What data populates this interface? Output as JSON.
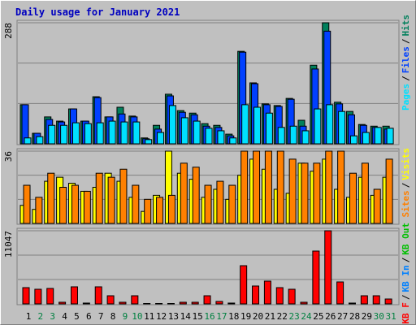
{
  "chart_data": {
    "type": "bar",
    "title": "Daily usage for January 2021",
    "categories": [
      "1",
      "2",
      "3",
      "4",
      "5",
      "6",
      "7",
      "8",
      "9",
      "10",
      "11",
      "12",
      "13",
      "14",
      "15",
      "16",
      "17",
      "18",
      "19",
      "20",
      "21",
      "22",
      "23",
      "24",
      "25",
      "26",
      "27",
      "28",
      "29",
      "30",
      "31"
    ],
    "category_colors": [
      "#000000",
      "#008040",
      "#008040",
      "#000000",
      "#000000",
      "#000000",
      "#000000",
      "#000000",
      "#008040",
      "#008040",
      "#000000",
      "#000000",
      "#000000",
      "#000000",
      "#000000",
      "#008040",
      "#008040",
      "#000000",
      "#000000",
      "#000000",
      "#000000",
      "#000000",
      "#008040",
      "#008040",
      "#000000",
      "#000000",
      "#000000",
      "#000000",
      "#000000",
      "#008040",
      "#008040"
    ],
    "separator": "/",
    "panels": [
      {
        "ylim": [
          0,
          288
        ],
        "yticks": [
          288
        ],
        "series": [
          {
            "name": "Hits",
            "color": "#00805C",
            "values": [
              93,
              25,
              64,
              54,
              83,
              54,
              112,
              64,
              87,
              66,
              14,
              44,
              118,
              79,
              73,
              48,
              44,
              23,
              220,
              145,
              95,
              91,
              108,
              56,
              187,
              288,
              99,
              77,
              46,
              42,
              42
            ]
          },
          {
            "name": "Files",
            "color": "#0040FF",
            "values": [
              93,
              25,
              58,
              52,
              83,
              54,
              110,
              64,
              71,
              64,
              12,
              35,
              114,
              75,
              69,
              42,
              39,
              19,
              218,
              143,
              93,
              89,
              106,
              42,
              178,
              268,
              95,
              69,
              44,
              39,
              35
            ]
          },
          {
            "name": "Pages",
            "color": "#00E0FF",
            "values": [
              14,
              17,
              44,
              44,
              50,
              48,
              50,
              54,
              52,
              52,
              10,
              27,
              91,
              62,
              54,
              37,
              31,
              14,
              93,
              87,
              73,
              39,
              42,
              31,
              83,
              93,
              77,
              19,
              27,
              39,
              37
            ]
          }
        ]
      },
      {
        "ylim": [
          0,
          36
        ],
        "yticks": [
          36
        ],
        "series": [
          {
            "name": "Visits",
            "color": "#FFFF00",
            "values": [
              9,
              7,
              21,
              23,
              20,
              16,
              18,
              25,
              21,
              13,
              6,
              14,
              36,
              25,
              22,
              13,
              17,
              12,
              24,
              32,
              27,
              17,
              15,
              30,
              26,
              32,
              17,
              13,
              23,
              14,
              23
            ]
          },
          {
            "name": "Sites",
            "color": "#FF8000",
            "values": [
              19,
              13,
              25,
              18,
              19,
              16,
              25,
              23,
              27,
              19,
              12,
              13,
              14,
              30,
              28,
              19,
              21,
              19,
              36,
              36,
              36,
              36,
              32,
              30,
              30,
              36,
              36,
              25,
              30,
              17,
              32
            ]
          }
        ]
      },
      {
        "ylim": [
          0,
          11047
        ],
        "yticks": [
          11047
        ],
        "series": [
          {
            "name": "KB F",
            "color": "#FF0000",
            "values": [
              2455,
              2209,
              2332,
              245,
              2578,
              123,
              2578,
              1227,
              245,
              1227,
              61,
              61,
              61,
              245,
              245,
              1227,
              368,
              123,
              5769,
              2700,
              3437,
              2455,
              2209,
              245,
              7979,
              11047,
              3314,
              123,
              1227,
              1227,
              736
            ]
          }
        ],
        "legend_only": [
          {
            "name": "KB In",
            "color": "#0080FF"
          },
          {
            "name": "KB Out",
            "color": "#00C000"
          }
        ]
      }
    ]
  }
}
